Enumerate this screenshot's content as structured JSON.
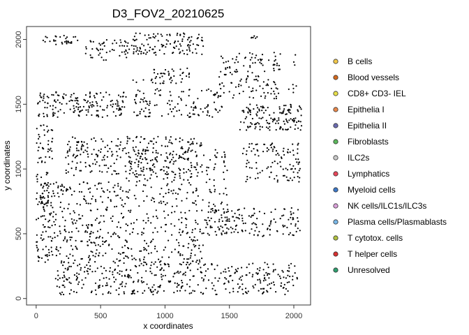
{
  "chart_data": {
    "type": "scatter",
    "title": "D3_FOV2_20210625",
    "xlabel": "x coordinates",
    "ylabel": "y coordinates",
    "xlim": [
      -75,
      2130
    ],
    "ylim": [
      -50,
      2100
    ],
    "xticks": [
      0,
      500,
      1000,
      1500,
      2000
    ],
    "yticks": [
      0,
      500,
      1000,
      1500,
      2000
    ],
    "grid": false,
    "legend_position": "right",
    "legend": [
      {
        "label": "B cells",
        "color": "#f2c84b"
      },
      {
        "label": "Blood vessels",
        "color": "#d2691e"
      },
      {
        "label": "CD8+ CD3- IEL",
        "color": "#e8e04a"
      },
      {
        "label": "Epithelia I",
        "color": "#e9874a"
      },
      {
        "label": "Epithelia II",
        "color": "#6b6bb0"
      },
      {
        "label": "Fibroblasts",
        "color": "#5cb85c"
      },
      {
        "label": "ILC2s",
        "color": "#c8c8c8"
      },
      {
        "label": "Lymphatics",
        "color": "#e8475a"
      },
      {
        "label": "Myeloid cells",
        "color": "#3c78c8"
      },
      {
        "label": "NK cells/ILC1s/ILC3s",
        "color": "#d9a0d9"
      },
      {
        "label": "Plasma cells/Plasmablasts",
        "color": "#7ab8e8"
      },
      {
        "label": "T cytotox. cells",
        "color": "#b0c040"
      },
      {
        "label": "T helper cells",
        "color": "#d83030"
      },
      {
        "label": "Unresolved",
        "color": "#2e9e6e"
      }
    ],
    "point_color": "#000000",
    "clusters": [
      {
        "x": [
          20,
          330
        ],
        "y": [
          1960,
          2030
        ],
        "n": 30
      },
      {
        "x": [
          1650,
          1730
        ],
        "y": [
          2010,
          2030
        ],
        "n": 6
      },
      {
        "x": [
          380,
          850
        ],
        "y": [
          1840,
          2000
        ],
        "n": 60
      },
      {
        "x": [
          750,
          1300
        ],
        "y": [
          1880,
          2050
        ],
        "n": 110
      },
      {
        "x": [
          870,
          1200
        ],
        "y": [
          1700,
          1780
        ],
        "n": 25
      },
      {
        "x": [
          750,
          1150
        ],
        "y": [
          1660,
          1730
        ],
        "n": 22
      },
      {
        "x": [
          1420,
          1900
        ],
        "y": [
          1540,
          1900
        ],
        "n": 130
      },
      {
        "x": [
          1960,
          2030
        ],
        "y": [
          1580,
          1920
        ],
        "n": 8
      },
      {
        "x": [
          10,
          700
        ],
        "y": [
          1400,
          1600
        ],
        "n": 170
      },
      {
        "x": [
          750,
          1450
        ],
        "y": [
          1400,
          1620
        ],
        "n": 120
      },
      {
        "x": [
          1580,
          2060
        ],
        "y": [
          1300,
          1500
        ],
        "n": 140
      },
      {
        "x": [
          0,
          130
        ],
        "y": [
          1050,
          1350
        ],
        "n": 40
      },
      {
        "x": [
          230,
          1300
        ],
        "y": [
          950,
          1250
        ],
        "n": 260
      },
      {
        "x": [
          1600,
          2050
        ],
        "y": [
          900,
          1200
        ],
        "n": 110
      },
      {
        "x": [
          0,
          100
        ],
        "y": [
          700,
          1000
        ],
        "n": 40
      },
      {
        "x": [
          700,
          1500
        ],
        "y": [
          500,
          1150
        ],
        "n": 280
      },
      {
        "x": [
          0,
          700
        ],
        "y": [
          500,
          900
        ],
        "n": 200
      },
      {
        "x": [
          1300,
          2050
        ],
        "y": [
          480,
          700
        ],
        "n": 140
      },
      {
        "x": [
          0,
          700
        ],
        "y": [
          280,
          520
        ],
        "n": 140
      },
      {
        "x": [
          700,
          1300
        ],
        "y": [
          270,
          520
        ],
        "n": 100
      },
      {
        "x": [
          150,
          2030
        ],
        "y": [
          30,
          280
        ],
        "n": 420
      }
    ]
  }
}
